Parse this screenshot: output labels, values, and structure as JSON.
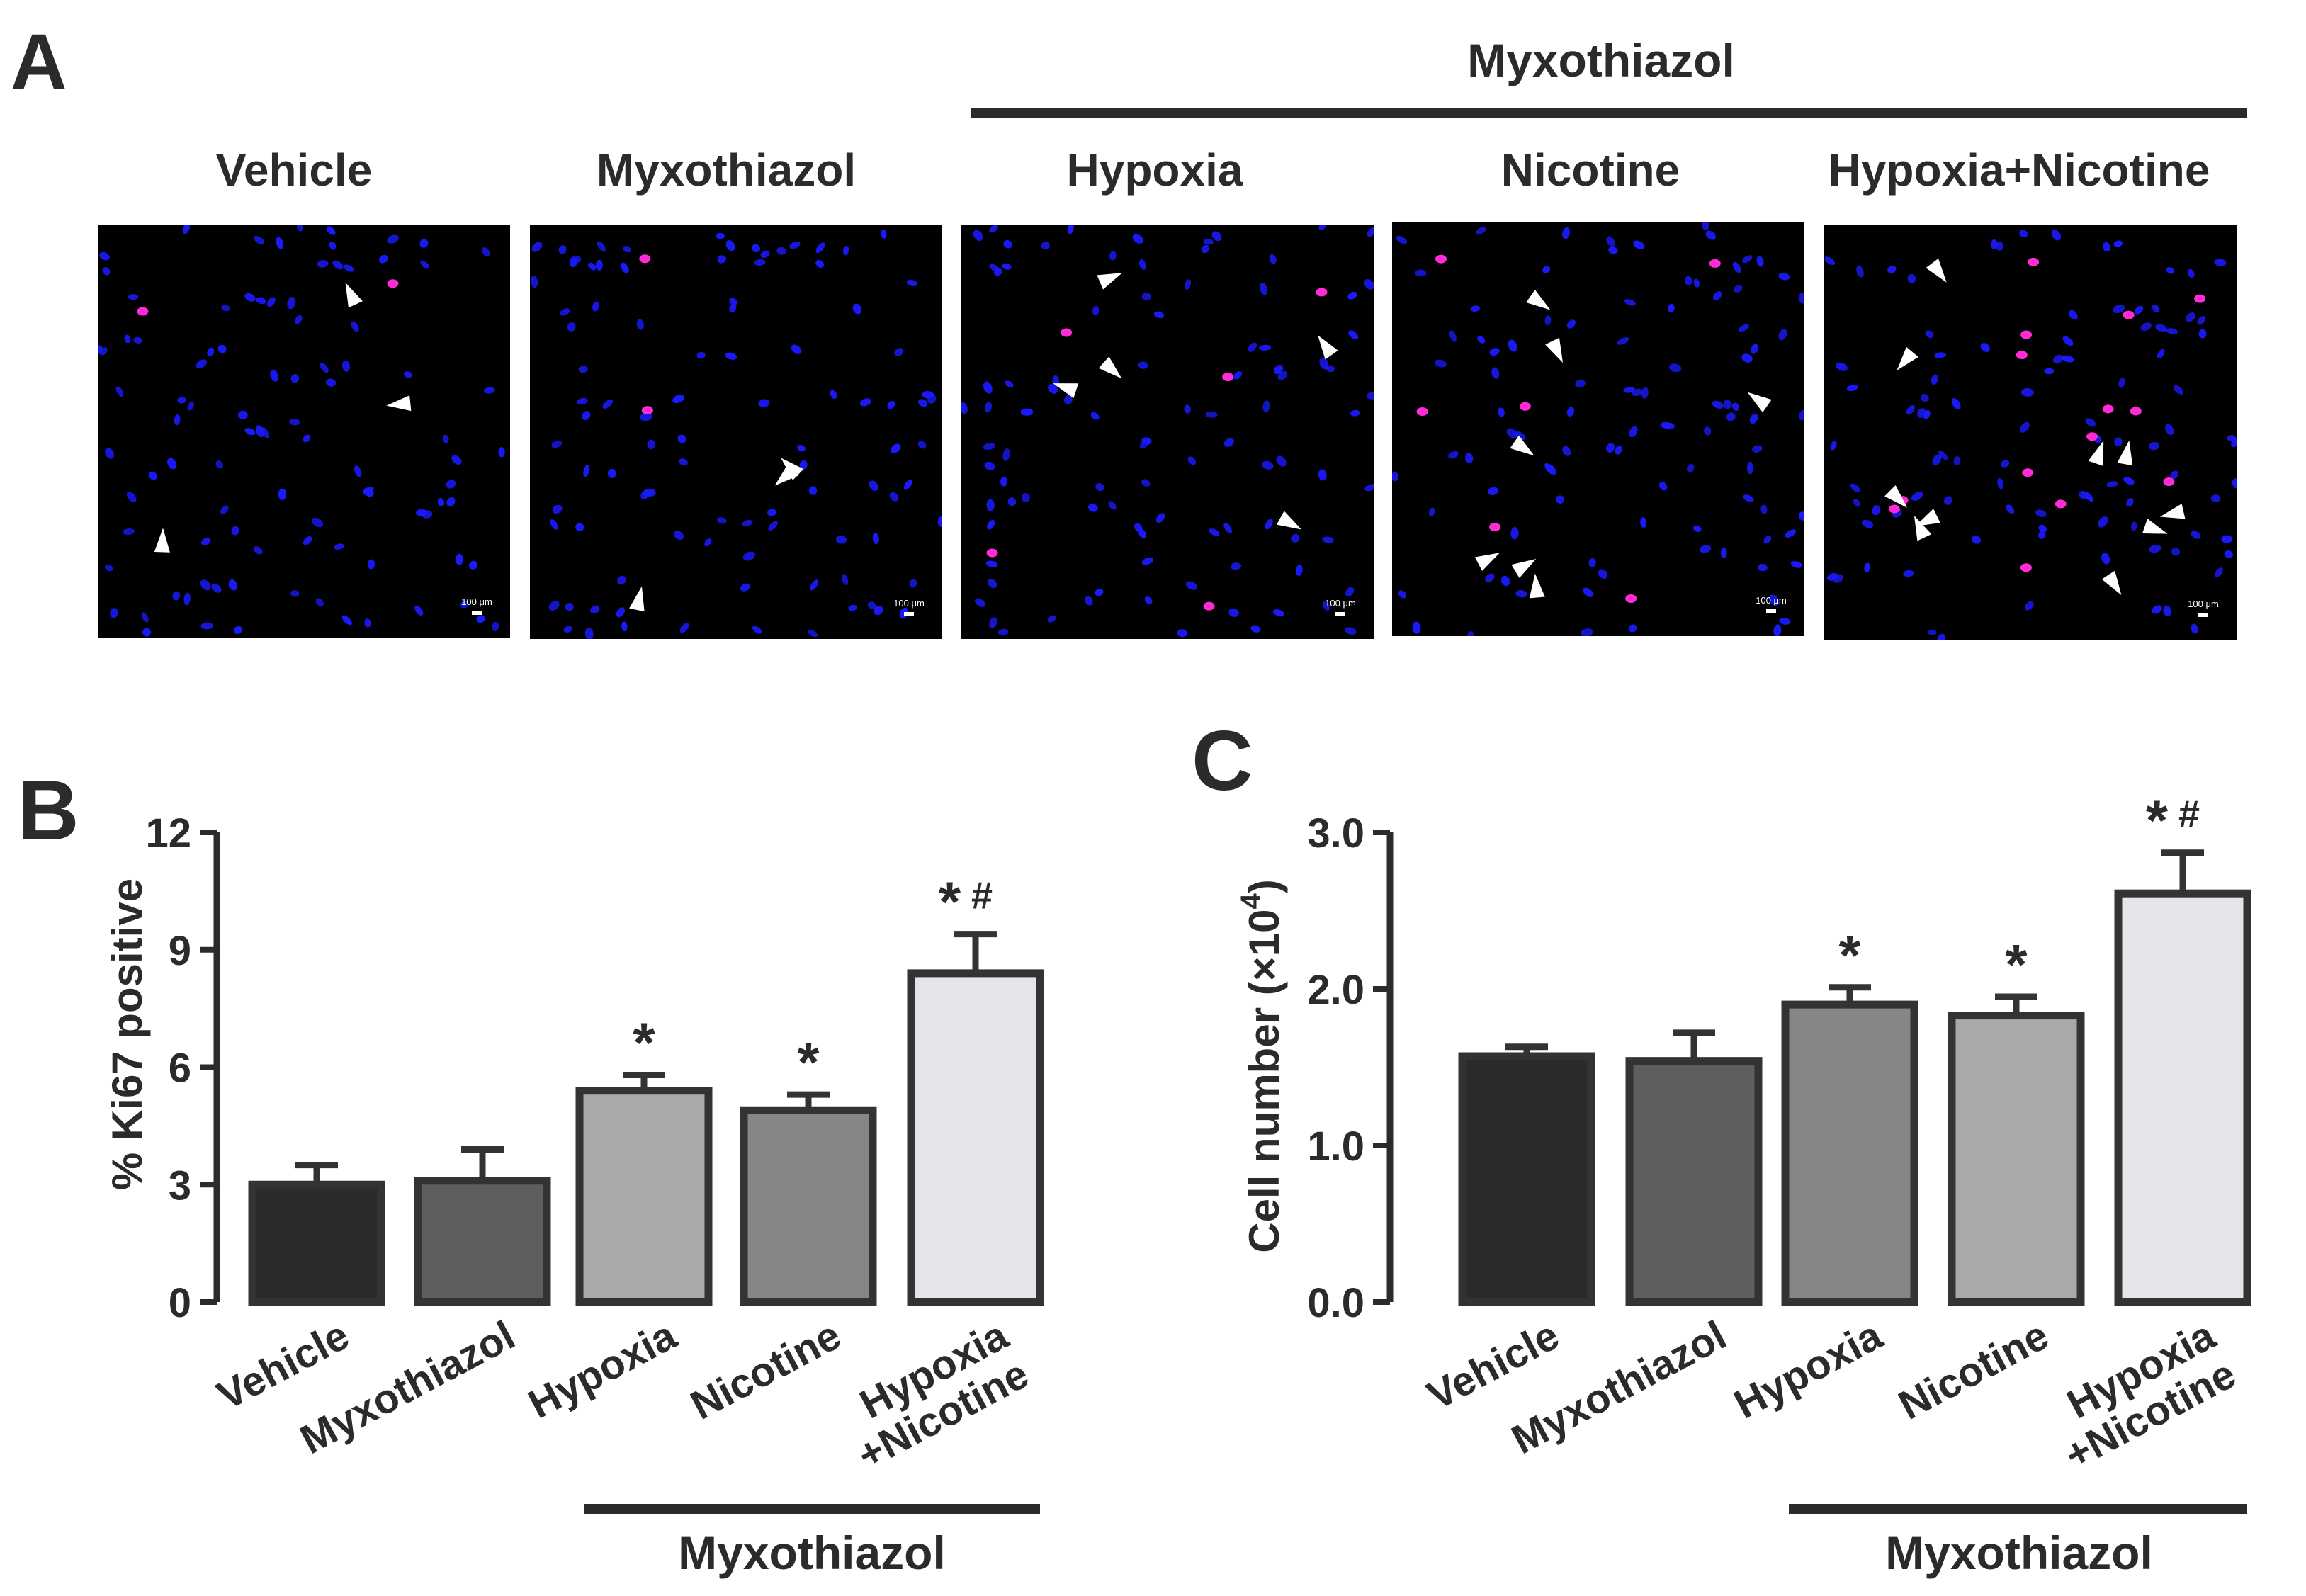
{
  "panel_a": {
    "letter": "A",
    "group_label": "Myxothiazol",
    "panels": [
      {
        "title": "Vehicle",
        "scale_bar": "100 μm"
      },
      {
        "title": "Myxothiazol",
        "scale_bar": "100 μm"
      },
      {
        "title": "Hypoxia",
        "scale_bar": "100 μm"
      },
      {
        "title": "Nicotine",
        "scale_bar": "100 μm"
      },
      {
        "title": "Hypoxia+Nicotine",
        "scale_bar": "100 μm"
      }
    ],
    "colors": {
      "background": "#000000",
      "nuclei": "#1a1aff",
      "ki67": "#ff2bd6",
      "arrow": "#ffffff"
    }
  },
  "chart_data": [
    {
      "letter": "B",
      "type": "bar",
      "categories": [
        "Vehicle",
        "Myxothiazol",
        "Hypoxia",
        "Nicotine",
        "Hypoxia+Nicotine"
      ],
      "category_lines": [
        [
          "Vehicle"
        ],
        [
          "Myxothiazol"
        ],
        [
          "Hypoxia"
        ],
        [
          "Nicotine"
        ],
        [
          "Hypoxia",
          "+Nicotine"
        ]
      ],
      "values": [
        3.0,
        3.1,
        5.4,
        4.9,
        8.4
      ],
      "errors": [
        0.5,
        0.8,
        0.4,
        0.4,
        1.0
      ],
      "annotations": [
        "",
        "",
        "*",
        "*",
        "*#"
      ],
      "bar_colors": [
        "#2d2a2b",
        "#5e5e5f",
        "#a7a9ab",
        "#848688",
        "#e3e5e8"
      ],
      "ylabel": "% Ki67 positive",
      "ylim": [
        0,
        12
      ],
      "yticks": [
        "0",
        "3",
        "6",
        "9",
        "12"
      ],
      "group_label": "Myxothiazol",
      "grid": false
    },
    {
      "letter": "C",
      "type": "bar",
      "categories": [
        "Vehicle",
        "Myxothiazol",
        "Hypoxia",
        "Nicotine",
        "Hypoxia+Nicotine"
      ],
      "category_lines": [
        [
          "Vehicle"
        ],
        [
          "Myxothiazol"
        ],
        [
          "Hypoxia"
        ],
        [
          "Nicotine"
        ],
        [
          "Hypoxia",
          "+Nicotine"
        ]
      ],
      "values": [
        1.57,
        1.54,
        1.9,
        1.83,
        2.61
      ],
      "errors": [
        0.06,
        0.18,
        0.11,
        0.12,
        0.26
      ],
      "annotations": [
        "",
        "",
        "*",
        "*",
        "*#"
      ],
      "bar_colors": [
        "#2d2a2b",
        "#5e5e5f",
        "#848688",
        "#a7a9ab",
        "#e3e5e8"
      ],
      "ylabel_main": "Cell number (×10",
      "ylabel_sup": "4",
      "ylabel_end": ")",
      "ylim": [
        0,
        3.0
      ],
      "yticks": [
        "0.0",
        "1.0",
        "2.0",
        "3.0"
      ],
      "group_label": "Myxothiazol",
      "grid": false
    }
  ]
}
